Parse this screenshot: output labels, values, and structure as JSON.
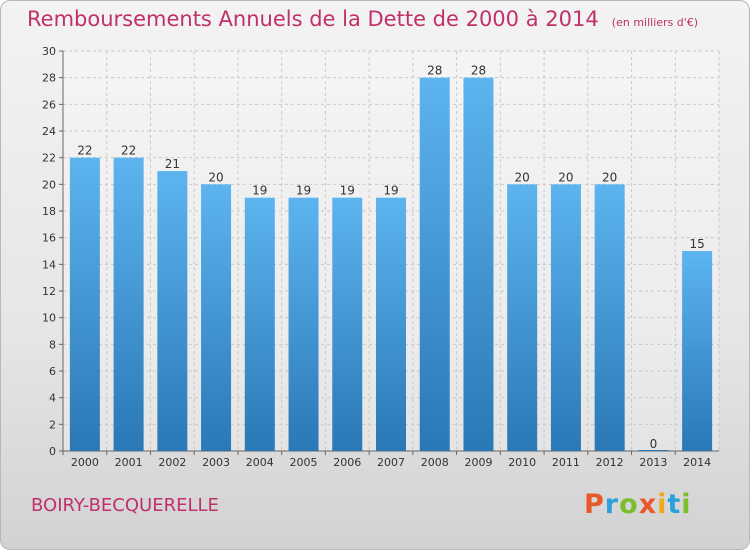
{
  "header": {
    "title": "Remboursements Annuels de la Dette de 2000 à 2014",
    "subtitle": "(en milliers d'€)"
  },
  "footer": {
    "commune": "BOIRY-BECQUERELLE",
    "brand": "Proxiti"
  },
  "colors": {
    "title": "#c0306a",
    "bar_top": "#5db4ee",
    "bar_bottom": "#2a78b6"
  },
  "chart_data": {
    "type": "bar",
    "title": "Remboursements Annuels de la Dette de 2000 à 2014",
    "subtitle": "(en milliers d'€)",
    "categories": [
      "2000",
      "2001",
      "2002",
      "2003",
      "2004",
      "2005",
      "2006",
      "2007",
      "2008",
      "2009",
      "2010",
      "2011",
      "2012",
      "2013",
      "2014"
    ],
    "values": [
      22,
      22,
      21,
      20,
      19,
      19,
      19,
      19,
      28,
      28,
      20,
      20,
      20,
      0,
      15
    ],
    "yticks": [
      0,
      2,
      4,
      6,
      8,
      10,
      12,
      14,
      16,
      18,
      20,
      22,
      24,
      26,
      28,
      30
    ],
    "ylim": [
      0,
      30
    ],
    "grid": true,
    "legend": "none"
  }
}
